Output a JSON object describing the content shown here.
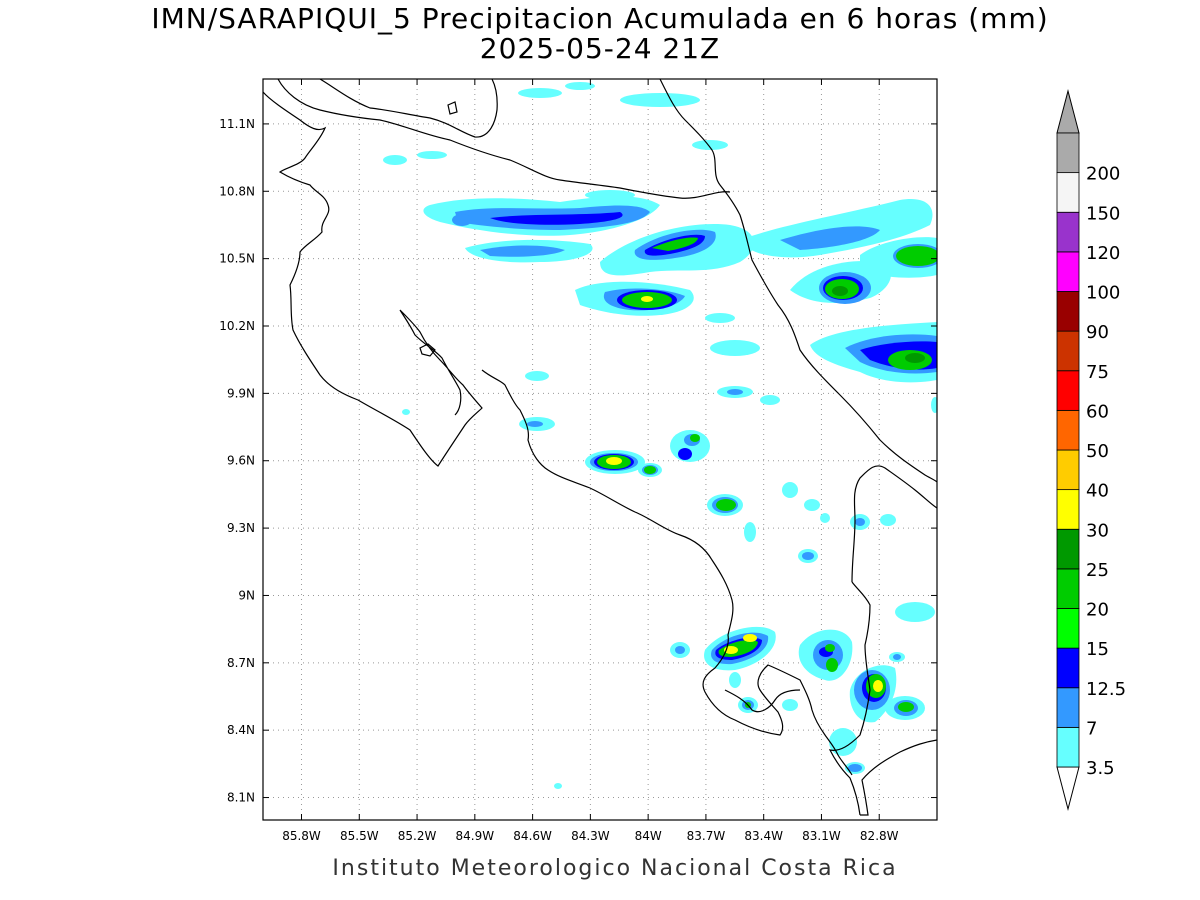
{
  "title": {
    "line1": "IMN/SARAPIQUI_5 Precipitacion Acumulada en 6 horas (mm)",
    "line2": "2025-05-24 21Z"
  },
  "footer": "Instituto Meteorologico Nacional Costa Rica",
  "map": {
    "lon_range": [
      -86.0,
      -82.5
    ],
    "lat_range": [
      8.0,
      11.3
    ],
    "lon_ticks": [
      "85.8W",
      "85.5W",
      "85.2W",
      "84.9W",
      "84.6W",
      "84.3W",
      "84W",
      "83.7W",
      "83.4W",
      "83.1W",
      "82.8W"
    ],
    "lat_ticks": [
      "11.1N",
      "10.8N",
      "10.5N",
      "10.2N",
      "9.9N",
      "9.6N",
      "9.3N",
      "9N",
      "8.7N",
      "8.4N",
      "8.1N"
    ],
    "grid": "dotted"
  },
  "colorbar": {
    "levels": [
      "3.5",
      "7",
      "12.5",
      "15",
      "20",
      "25",
      "30",
      "40",
      "50",
      "60",
      "75",
      "90",
      "100",
      "120",
      "150",
      "200"
    ],
    "colors": [
      "#66ffff",
      "#3399ff",
      "#0000ff",
      "#00ff00",
      "#00cc00",
      "#009900",
      "#ffff00",
      "#ffcc00",
      "#ff6600",
      "#ff0000",
      "#cc3300",
      "#990000",
      "#ff00ff",
      "#9933cc",
      "#f5f5f5",
      "#aaaaaa"
    ],
    "over_color": "#aaaaaa",
    "under_color": "#ffffff"
  }
}
